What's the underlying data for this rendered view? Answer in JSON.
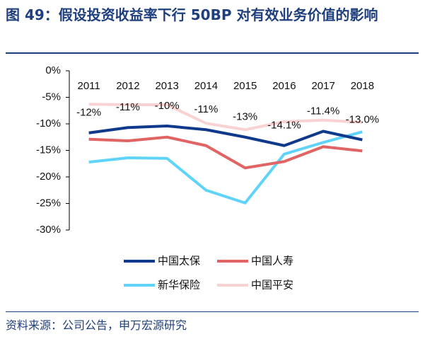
{
  "chart_data": {
    "type": "line",
    "title": "图 49：假设投资收益率下行 50BP 对有效业务价值的影响",
    "source": "资料来源：公司公告，申万宏源研究",
    "categories": [
      "2011",
      "2012",
      "2013",
      "2014",
      "2015",
      "2016",
      "2017",
      "2018"
    ],
    "ylim": [
      -30,
      0
    ],
    "yticks": [
      {
        "value": 0,
        "label": "0%"
      },
      {
        "value": -5,
        "label": "-5%"
      },
      {
        "value": -10,
        "label": "-10%"
      },
      {
        "value": -15,
        "label": "-15%"
      },
      {
        "value": -20,
        "label": "-20%"
      },
      {
        "value": -25,
        "label": "-25%"
      },
      {
        "value": -30,
        "label": "-30%"
      }
    ],
    "series": [
      {
        "name": "中国太保",
        "color": "#0F3A8C",
        "values": [
          -11.7,
          -10.7,
          -10.4,
          -11.1,
          -12.5,
          -14.1,
          -11.4,
          -13.0
        ],
        "value_labels": [
          "-12%",
          "-11%",
          "-10%",
          "-11%",
          "-13%",
          "-14.1%",
          "-11.4%",
          "-13.0%"
        ]
      },
      {
        "name": "中国人寿",
        "color": "#E06464",
        "values": [
          -12.9,
          -13.2,
          -12.5,
          -14.1,
          -18.3,
          -17.1,
          -14.3,
          -15.1
        ]
      },
      {
        "name": "新华保险",
        "color": "#5FD4F8",
        "values": [
          -17.2,
          -16.4,
          -16.5,
          -22.5,
          -24.9,
          -15.7,
          -13.5,
          -11.5
        ]
      },
      {
        "name": "中国平安",
        "color": "#F9D3D3",
        "values": [
          -6.3,
          -6.4,
          -6.4,
          -9.9,
          -11.1,
          -9.6,
          -9.3,
          -9.7
        ]
      }
    ]
  }
}
